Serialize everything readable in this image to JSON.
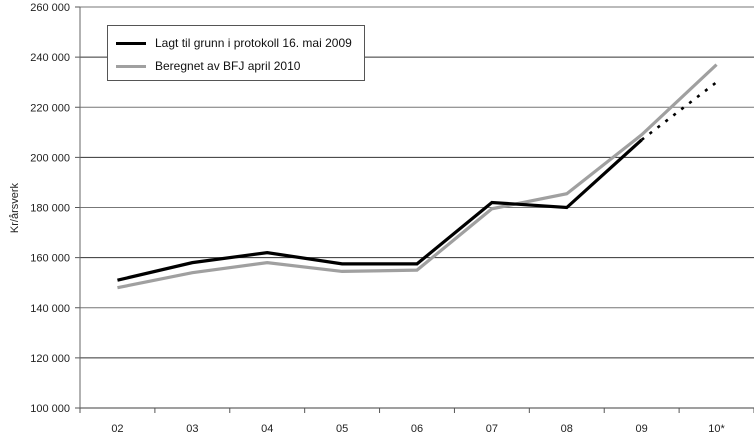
{
  "chart_data": {
    "type": "line",
    "title": "",
    "xlabel": "",
    "ylabel": "Kr/årsverk",
    "ylim": [
      100000,
      260000
    ],
    "yticks": [
      "100 000",
      "120 000",
      "140 000",
      "160 000",
      "180 000",
      "200 000",
      "220 000",
      "240 000",
      "260 000"
    ],
    "grid": true,
    "legend_position": "upper-left (inset box)",
    "categories": [
      "02",
      "03",
      "04",
      "05",
      "06",
      "07",
      "08",
      "09",
      "10*"
    ],
    "series": [
      {
        "name": "Lagt til grunn i protokoll 16. mai 2009",
        "color": "#000000",
        "values": [
          151000,
          158000,
          162000,
          157500,
          157500,
          182000,
          180000,
          207000,
          null
        ],
        "projection": {
          "from": "09",
          "to": "10*",
          "values": [
            207000,
            230000
          ],
          "style": "dotted"
        }
      },
      {
        "name": "Beregnet av BFJ april 2010",
        "color": "#a0a0a0",
        "values": [
          148000,
          154000,
          158000,
          154500,
          155000,
          179500,
          185500,
          209000,
          237000
        ]
      }
    ]
  },
  "legend": {
    "items": [
      {
        "label": "Lagt til grunn i protokoll 16. mai 2009",
        "color": "#000000"
      },
      {
        "label": "Beregnet av BFJ april 2010",
        "color": "#a0a0a0"
      }
    ]
  },
  "axes": {
    "y_title": "Kr/årsverk"
  }
}
